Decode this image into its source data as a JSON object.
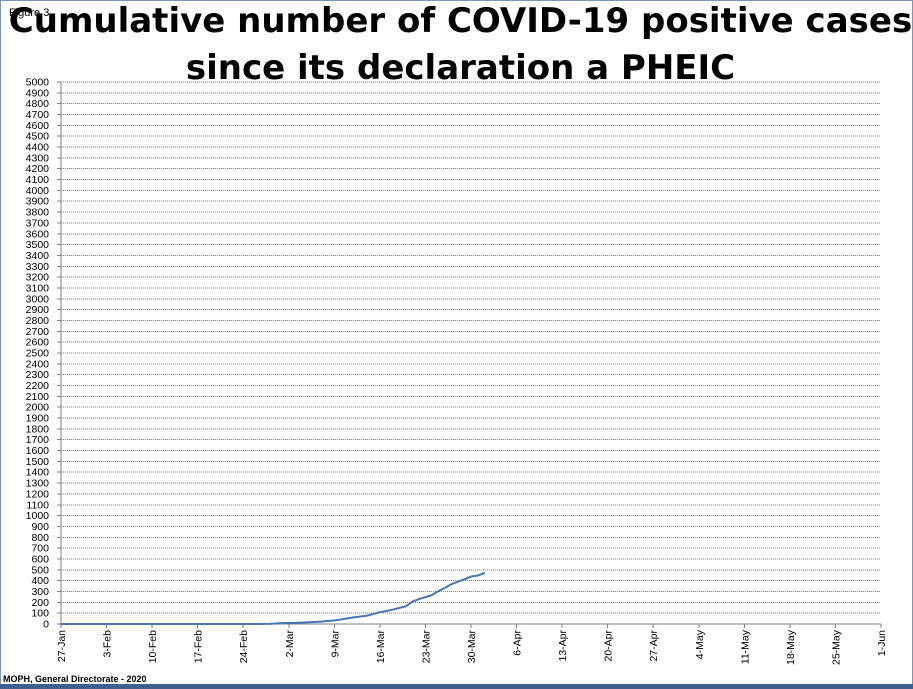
{
  "figure_label": "Figure 3",
  "footer": "MOPH, General Directorate - 2020",
  "chart_data": {
    "type": "line",
    "title": "Cumulative number of COVID-19 positive cases since its declaration a PHEIC",
    "title_lines": [
      "Cumulative number of COVID-19 positive cases",
      "since its declaration a PHEIC"
    ],
    "xlabel": "",
    "ylabel": "",
    "ylim": [
      0,
      5000
    ],
    "y_tick_step": 100,
    "grid": true,
    "legend": "none",
    "x_tick_labels": [
      "27-Jan",
      "3-Feb",
      "10-Feb",
      "17-Feb",
      "24-Feb",
      "2-Mar",
      "9-Mar",
      "16-Mar",
      "23-Mar",
      "30-Mar",
      "6-Apr",
      "13-Apr",
      "20-Apr",
      "27-Apr",
      "4-May",
      "11-May",
      "18-May",
      "25-May",
      "1-Jun"
    ],
    "x_range": [
      "2020-01-27",
      "2020-06-01"
    ],
    "series": [
      {
        "color": "#4a74b8",
        "points": [
          [
            "2020-01-27",
            0
          ],
          [
            "2020-02-10",
            0
          ],
          [
            "2020-02-24",
            0
          ],
          [
            "2020-02-28",
            1
          ],
          [
            "2020-03-01",
            8
          ],
          [
            "2020-03-03",
            10
          ],
          [
            "2020-03-05",
            16
          ],
          [
            "2020-03-06",
            19
          ],
          [
            "2020-03-07",
            22
          ],
          [
            "2020-03-08",
            29
          ],
          [
            "2020-03-09",
            32
          ],
          [
            "2020-03-10",
            41
          ],
          [
            "2020-03-11",
            52
          ],
          [
            "2020-03-12",
            61
          ],
          [
            "2020-03-13",
            69
          ],
          [
            "2020-03-14",
            76
          ],
          [
            "2020-03-15",
            93
          ],
          [
            "2020-03-16",
            109
          ],
          [
            "2020-03-17",
            120
          ],
          [
            "2020-03-18",
            133
          ],
          [
            "2020-03-19",
            149
          ],
          [
            "2020-03-20",
            163
          ],
          [
            "2020-03-21",
            206
          ],
          [
            "2020-03-22",
            230
          ],
          [
            "2020-03-23",
            248
          ],
          [
            "2020-03-24",
            267
          ],
          [
            "2020-03-25",
            304
          ],
          [
            "2020-03-26",
            333
          ],
          [
            "2020-03-27",
            367
          ],
          [
            "2020-03-28",
            391
          ],
          [
            "2020-03-29",
            412
          ],
          [
            "2020-03-30",
            438
          ],
          [
            "2020-03-31",
            446
          ],
          [
            "2020-04-01",
            470
          ]
        ]
      }
    ]
  }
}
